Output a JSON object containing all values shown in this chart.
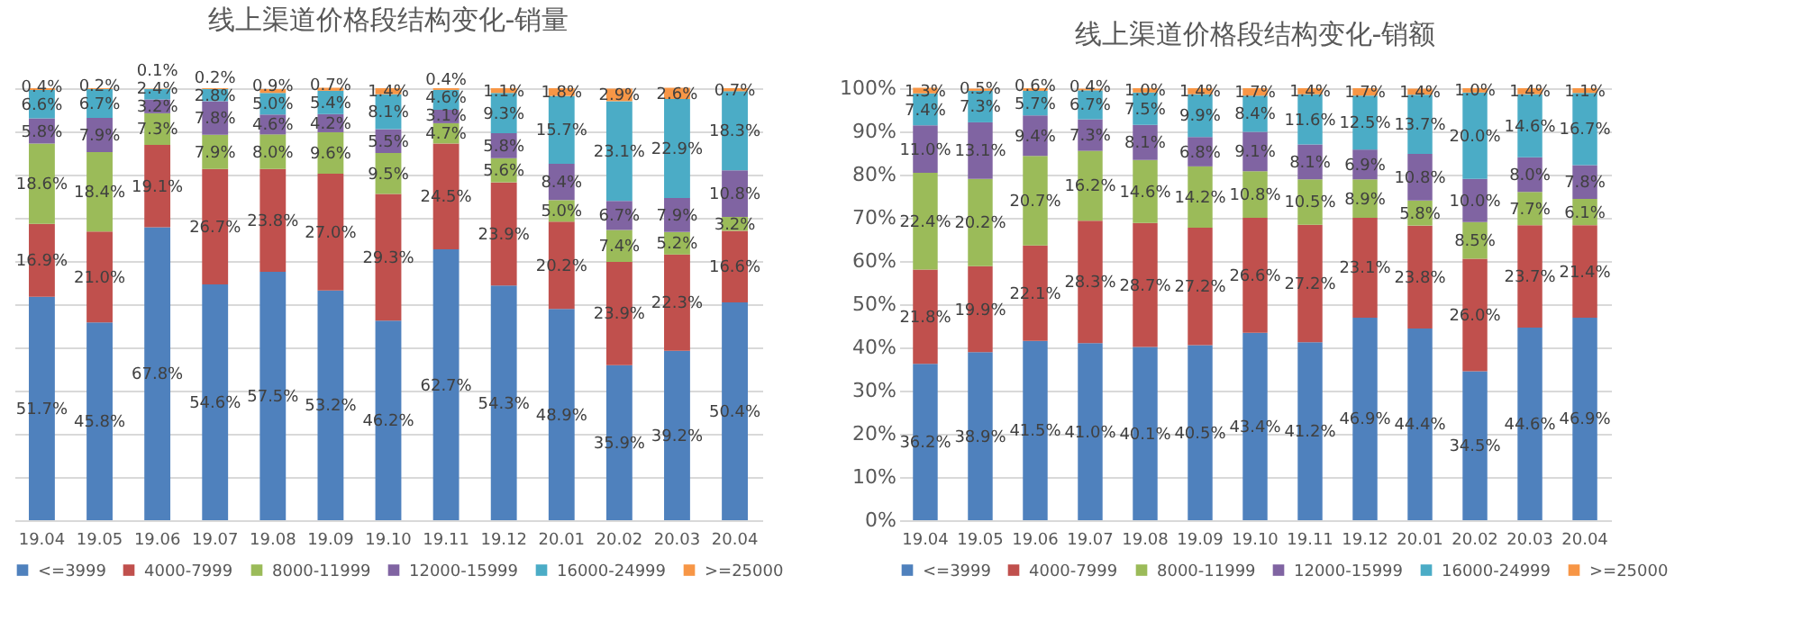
{
  "chart_data": [
    {
      "type": "bar",
      "title": "线上渠道价格段结构变化-销量",
      "stacked": true,
      "legend": "bottom",
      "grid": "y",
      "tick_labels": "x",
      "categories": [
        "19.04",
        "19.05",
        "19.06",
        "19.07",
        "19.08",
        "19.09",
        "19.10",
        "19.11",
        "19.12",
        "20.01",
        "20.02",
        "20.03",
        "20.04"
      ],
      "ylim": [
        0,
        100
      ],
      "yticks": [
        0,
        10,
        20,
        30,
        40,
        50,
        60,
        70,
        80,
        90,
        100
      ],
      "series": [
        {
          "name": "<=3999",
          "color": "#4f81bd",
          "values": [
            51.7,
            45.8,
            67.8,
            54.6,
            57.5,
            53.2,
            46.2,
            62.7,
            54.3,
            48.9,
            35.9,
            39.2,
            50.4
          ],
          "value_labels": [
            "51.7%",
            "45.8%",
            "67.8%",
            "54.6%",
            "57.5%",
            "53.2%",
            "46.2%",
            "62.7%",
            "54.3%",
            "48.9%",
            "35.9%",
            "39.2%",
            "50.4%"
          ]
        },
        {
          "name": "4000-7999",
          "color": "#c0504d",
          "values": [
            16.9,
            21.0,
            19.1,
            26.7,
            23.8,
            27.0,
            29.3,
            24.5,
            23.9,
            20.2,
            23.9,
            22.3,
            16.6
          ],
          "value_labels": [
            "16.9%",
            "21.0%",
            "19.1%",
            "26.7%",
            "23.8%",
            "27.0%",
            "29.3%",
            "24.5%",
            "23.9%",
            "20.2%",
            "23.9%",
            "22.3%",
            "16.6%"
          ]
        },
        {
          "name": "8000-11999",
          "color": "#9bbb59",
          "values": [
            18.6,
            18.4,
            7.3,
            7.9,
            8.0,
            9.6,
            9.5,
            4.7,
            5.6,
            5.0,
            7.4,
            5.2,
            3.2
          ],
          "value_labels": [
            "18.6%",
            "18.4%",
            "7.3%",
            "7.9%",
            "8.0%",
            "9.6%",
            "9.5%",
            "4.7%",
            "5.6%",
            "5.0%",
            "7.4%",
            "5.2%",
            "3.2%"
          ]
        },
        {
          "name": "12000-15999",
          "color": "#8064a2",
          "values": [
            5.8,
            7.9,
            3.2,
            7.8,
            4.6,
            4.2,
            5.5,
            3.1,
            5.8,
            8.4,
            6.7,
            7.9,
            10.8
          ],
          "value_labels": [
            "5.8%",
            "7.9%",
            "3.2%",
            "7.8%",
            "4.6%",
            "4.2%",
            "5.5%",
            "3.1%",
            "5.8%",
            "8.4%",
            "6.7%",
            "7.9%",
            "10.8%"
          ]
        },
        {
          "name": "16000-24999",
          "color": "#4bacc6",
          "values": [
            6.6,
            6.7,
            2.4,
            2.8,
            5.0,
            5.4,
            8.1,
            4.6,
            9.3,
            15.7,
            23.1,
            22.9,
            18.3
          ],
          "value_labels": [
            "6.6%",
            "6.7%",
            "2.4%",
            "2.8%",
            "5.0%",
            "5.4%",
            "8.1%",
            "4.6%",
            "9.3%",
            "15.7%",
            "23.1%",
            "22.9%",
            "18.3%"
          ]
        },
        {
          "name": ">=25000",
          "color": "#f79646",
          "values": [
            0.4,
            0.2,
            0.1,
            0.2,
            0.9,
            0.7,
            1.4,
            0.4,
            1.1,
            1.8,
            2.9,
            2.6,
            0.7
          ],
          "value_labels": [
            "0.4%",
            "0.2%",
            "0.1%",
            "0.2%",
            "0.9%",
            "0.7%",
            "1.4%",
            "0.4%",
            "1.1%",
            "1.8%",
            "2.9%",
            "2.6%",
            "0.7%"
          ]
        }
      ]
    },
    {
      "type": "bar",
      "title": "线上渠道价格段结构变化-销额",
      "stacked": true,
      "legend": "bottom",
      "grid": "y",
      "categories": [
        "19.04",
        "19.05",
        "19.06",
        "19.07",
        "19.08",
        "19.09",
        "19.10",
        "19.11",
        "19.12",
        "20.01",
        "20.02",
        "20.03",
        "20.04"
      ],
      "ylim": [
        0,
        100
      ],
      "yticks": [
        {
          "value": 0,
          "label": "0%"
        },
        {
          "value": 10,
          "label": "10%"
        },
        {
          "value": 20,
          "label": "20%"
        },
        {
          "value": 30,
          "label": "30%"
        },
        {
          "value": 40,
          "label": "40%"
        },
        {
          "value": 50,
          "label": "50%"
        },
        {
          "value": 60,
          "label": "60%"
        },
        {
          "value": 70,
          "label": "70%"
        },
        {
          "value": 80,
          "label": "80%"
        },
        {
          "value": 90,
          "label": "90%"
        },
        {
          "value": 100,
          "label": "100%"
        }
      ],
      "series": [
        {
          "name": "<=3999",
          "color": "#4f81bd",
          "values": [
            36.2,
            38.9,
            41.5,
            41.0,
            40.1,
            40.5,
            43.4,
            41.2,
            46.9,
            44.4,
            34.5,
            44.6,
            46.9
          ],
          "value_labels": [
            "36.2%",
            "38.9%",
            "41.5%",
            "41.0%",
            "40.1%",
            "40.5%",
            "43.4%",
            "41.2%",
            "46.9%",
            "44.4%",
            "34.5%",
            "44.6%",
            "46.9%"
          ]
        },
        {
          "name": "4000-7999",
          "color": "#c0504d",
          "values": [
            21.8,
            19.9,
            22.1,
            28.3,
            28.7,
            27.2,
            26.6,
            27.2,
            23.1,
            23.8,
            26.0,
            23.7,
            21.4
          ],
          "value_labels": [
            "21.8%",
            "19.9%",
            "22.1%",
            "28.3%",
            "28.7%",
            "27.2%",
            "26.6%",
            "27.2%",
            "23.1%",
            "23.8%",
            "26.0%",
            "23.7%",
            "21.4%"
          ]
        },
        {
          "name": "8000-11999",
          "color": "#9bbb59",
          "values": [
            22.4,
            20.2,
            20.7,
            16.2,
            14.6,
            14.2,
            10.8,
            10.5,
            8.9,
            5.8,
            8.5,
            7.7,
            6.1
          ],
          "value_labels": [
            "22.4%",
            "20.2%",
            "20.7%",
            "16.2%",
            "14.6%",
            "14.2%",
            "10.8%",
            "10.5%",
            "8.9%",
            "5.8%",
            "8.5%",
            "7.7%",
            "6.1%"
          ]
        },
        {
          "name": "12000-15999",
          "color": "#8064a2",
          "values": [
            11.0,
            13.1,
            9.4,
            7.3,
            8.1,
            6.8,
            9.1,
            8.1,
            6.9,
            10.8,
            10.0,
            8.0,
            7.8
          ],
          "value_labels": [
            "11.0%",
            "13.1%",
            "9.4%",
            "7.3%",
            "8.1%",
            "6.8%",
            "9.1%",
            "8.1%",
            "6.9%",
            "10.8%",
            "10.0%",
            "8.0%",
            "7.8%"
          ]
        },
        {
          "name": "16000-24999",
          "color": "#4bacc6",
          "values": [
            7.4,
            7.3,
            5.7,
            6.7,
            7.5,
            9.9,
            8.4,
            11.6,
            12.5,
            13.7,
            20.0,
            14.6,
            16.7
          ],
          "value_labels": [
            "7.4%",
            "7.3%",
            "5.7%",
            "6.7%",
            "7.5%",
            "9.9%",
            "8.4%",
            "11.6%",
            "12.5%",
            "13.7%",
            "20.0%",
            "14.6%",
            "16.7%"
          ]
        },
        {
          "name": ">=25000",
          "color": "#f79646",
          "values": [
            1.3,
            0.5,
            0.6,
            0.4,
            1.0,
            1.4,
            1.7,
            1.4,
            1.7,
            1.4,
            1.0,
            1.4,
            1.1
          ],
          "value_labels": [
            "1.3%",
            "0.5%",
            "0.6%",
            "0.4%",
            "1.0%",
            "1.4%",
            "1.7%",
            "1.4%",
            "1.7%",
            "1.4%",
            "1.0%",
            "1.4%",
            "1.1%"
          ]
        }
      ]
    }
  ]
}
